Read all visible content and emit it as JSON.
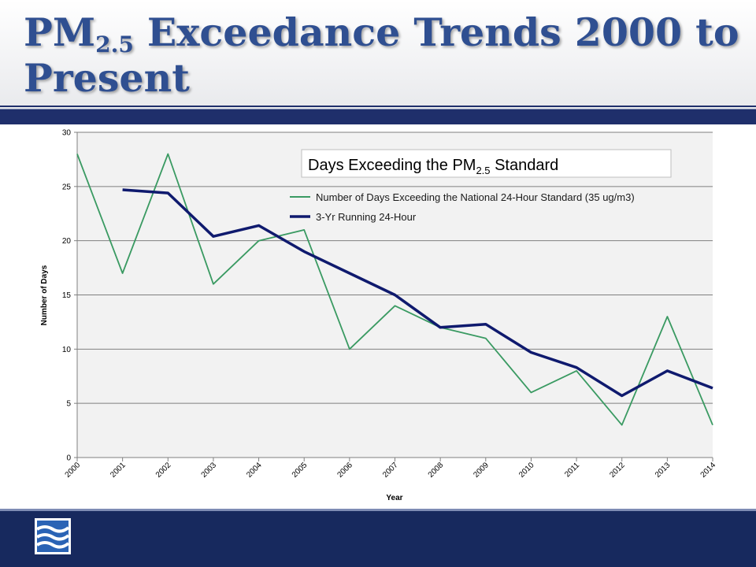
{
  "slide": {
    "title_main": "PM",
    "title_sub": "2.5",
    "title_rest": " Exceedance Trends 2000 to",
    "title_line2": "Present"
  },
  "colors": {
    "title": "#2f4f91",
    "band_dark": "#1f2f6b",
    "series_days": "#3a9a62",
    "series_running": "#0f1a6e",
    "grid": "#7f7f7f",
    "plot_bg": "#f2f2f2"
  },
  "icons": {
    "logo": "waves-logo-icon"
  },
  "chart_data": {
    "type": "line",
    "title_main": "Days Exceeding the PM",
    "title_sub": "2.5",
    "title_rest": " Standard",
    "xlabel": "Year",
    "ylabel": "Number of Days",
    "ylim": [
      0,
      30
    ],
    "yticks": [
      0,
      5,
      10,
      15,
      20,
      25,
      30
    ],
    "grid": true,
    "legend_position": "top-right",
    "categories": [
      "2000",
      "2001",
      "2002",
      "2003",
      "2004",
      "2005",
      "2006",
      "2007",
      "2008",
      "2009",
      "2010",
      "2011",
      "2012",
      "2013",
      "2014"
    ],
    "series": [
      {
        "name": "Number of Days Exceeding the National 24-Hour Standard (35 ug/m3)",
        "values": [
          28,
          17,
          28,
          16,
          20,
          21,
          10,
          14,
          12,
          11,
          6,
          8,
          3,
          13,
          3
        ]
      },
      {
        "name": "3-Yr Running 24-Hour",
        "values": [
          null,
          24.7,
          24.4,
          20.4,
          21.4,
          19.0,
          17.0,
          15.0,
          12.0,
          12.3,
          9.7,
          8.3,
          5.7,
          8.0,
          6.4
        ]
      }
    ]
  }
}
